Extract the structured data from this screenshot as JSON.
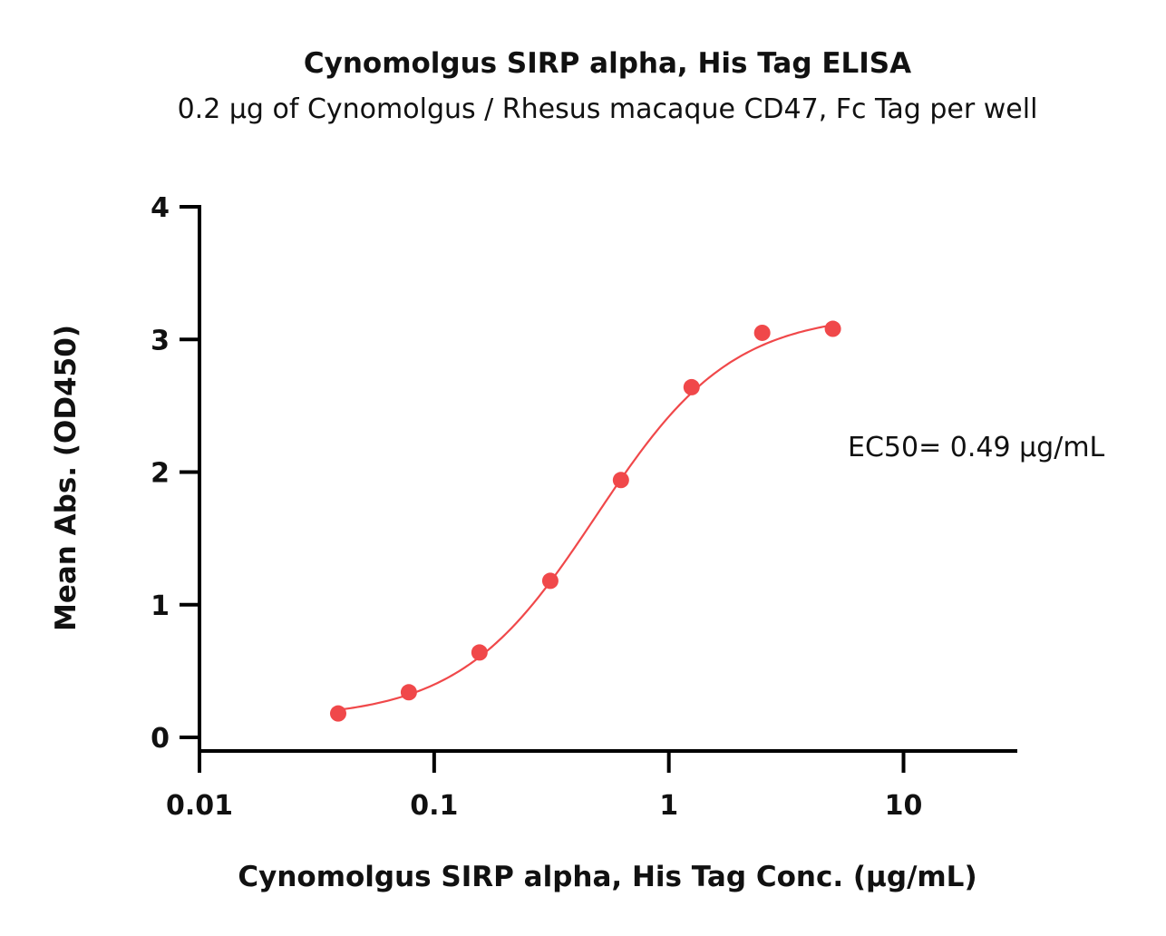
{
  "chart_data": {
    "type": "scatter",
    "title": "Cynomolgus SIRP alpha, His Tag ELISA",
    "subtitle": "0.2 µg of Cynomolgus / Rhesus macaque CD47, Fc Tag per well",
    "xlabel": "Cynomolgus SIRP alpha, His Tag Conc. (µg/mL)",
    "ylabel": "Mean Abs. (OD450)",
    "x_scale": "log",
    "xlim": [
      0.01,
      30
    ],
    "ylim": [
      0,
      4
    ],
    "x_ticks": [
      {
        "value": 0.01,
        "label": "0.01"
      },
      {
        "value": 0.1,
        "label": "0.1"
      },
      {
        "value": 1,
        "label": "1"
      },
      {
        "value": 10,
        "label": "10"
      }
    ],
    "y_ticks": [
      {
        "value": 0,
        "label": "0"
      },
      {
        "value": 1,
        "label": "1"
      },
      {
        "value": 2,
        "label": "2"
      },
      {
        "value": 3,
        "label": "3"
      },
      {
        "value": 4,
        "label": "4"
      }
    ],
    "grid": false,
    "legend": "none",
    "series": [
      {
        "x": [
          0.039,
          0.078,
          0.156,
          0.3125,
          0.625,
          1.25,
          2.5,
          5.0
        ],
        "y": [
          0.18,
          0.34,
          0.64,
          1.18,
          1.94,
          2.64,
          3.05,
          3.08
        ],
        "color": "#f0484a",
        "fit": "4PL sigmoid",
        "fit_params": {
          "bottom": 0.14,
          "top": 3.2,
          "ec50": 0.49,
          "hill": 1.5
        }
      }
    ],
    "annotations": [
      {
        "text": "EC50= 0.49 µg/mL"
      }
    ]
  }
}
